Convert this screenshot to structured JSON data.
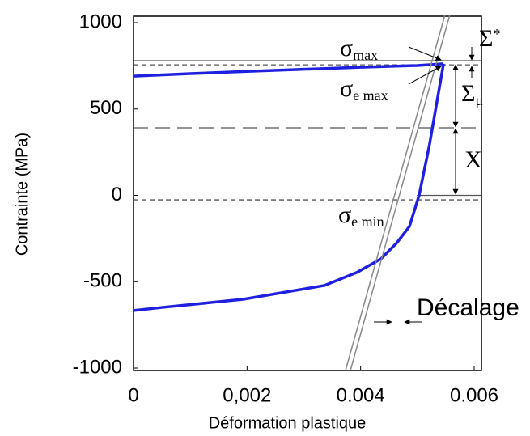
{
  "chart_data": {
    "type": "line",
    "x_label": "Déformation plastique",
    "y_label": "Contrainte (MPa)",
    "xlim": [
      0,
      0.006
    ],
    "xticks": [
      0,
      {
        "value": 0.002,
        "label": "0,002"
      },
      0.004,
      0.006
    ],
    "ylim": [
      -1000,
      1000
    ],
    "yticks": [
      1000,
      500,
      0,
      -500,
      -1000
    ],
    "series": [
      {
        "color": "#1f1fe0",
        "x": [
          0,
          0.001,
          0.002,
          0.003,
          0.004,
          0.005,
          0.00546
        ],
        "values": [
          690,
          705,
          718,
          730,
          742,
          752,
          762
        ]
      },
      {
        "color": "#1f1fe0",
        "x": [
          0.00546,
          0.00521,
          0.00503,
          0.00486,
          0.00464,
          0.00436,
          0.00393,
          0.00336,
          0.00193,
          0.0005,
          0
        ],
        "values": [
          762,
          288,
          0,
          -180,
          -274,
          -367,
          -447,
          -522,
          -602,
          -649,
          -667
        ]
      }
    ],
    "hlines": [
      {
        "value": 780,
        "style": "solid"
      },
      {
        "value": 756,
        "style": "dashed"
      },
      {
        "value": 391,
        "style": "longdash"
      },
      {
        "value": 0,
        "style": "short"
      },
      {
        "value": -26,
        "style": "dashed"
      }
    ],
    "annotations": [
      {
        "text": "σ",
        "sub": "max"
      },
      {
        "text": "σ",
        "sub": "e max"
      },
      {
        "text": "Σ",
        "sup": "*"
      },
      {
        "text": "Σ",
        "sub": "μ"
      },
      {
        "text": "X"
      },
      {
        "text": "σ",
        "sub": "e min"
      },
      {
        "text": "Décalage"
      }
    ]
  }
}
